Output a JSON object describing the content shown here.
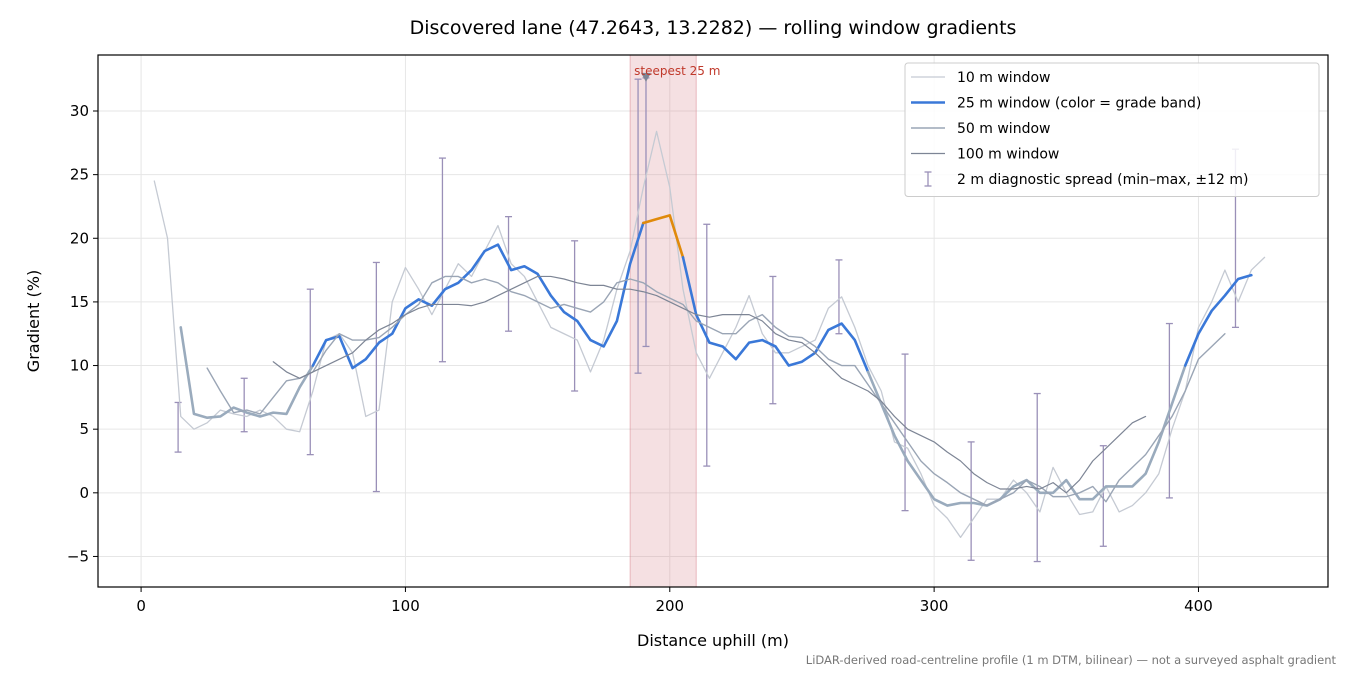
{
  "chart_data": {
    "type": "line",
    "title": "Discovered lane (47.2643, 13.2282) — rolling window gradients",
    "xlabel": "Distance uphill (m)",
    "ylabel": "Gradient (%)",
    "footnote": "LiDAR-derived road-centreline profile (1 m DTM, bilinear) — not a surveyed asphalt gradient",
    "xlim": [
      -16.3,
      449
    ],
    "ylim": [
      -7.4,
      34.4
    ],
    "xticks": [
      0,
      100,
      200,
      300,
      400
    ],
    "yticks": [
      {
        "value": -5,
        "label": "−5"
      },
      0,
      5,
      10,
      15,
      20,
      25,
      30
    ],
    "grid": true,
    "legend": "upper right",
    "x": [
      5,
      10,
      15,
      20,
      25,
      30,
      35,
      40,
      45,
      50,
      55,
      60,
      65,
      70,
      75,
      80,
      85,
      90,
      95,
      100,
      105,
      110,
      115,
      120,
      125,
      130,
      135,
      140,
      145,
      150,
      155,
      160,
      165,
      170,
      175,
      180,
      185,
      190,
      195,
      200,
      205,
      210,
      215,
      220,
      225,
      230,
      235,
      240,
      245,
      250,
      255,
      260,
      265,
      270,
      275,
      280,
      285,
      290,
      295,
      300,
      305,
      310,
      315,
      320,
      325,
      330,
      335,
      340,
      345,
      350,
      355,
      360,
      365,
      370,
      375,
      380,
      385,
      390,
      395,
      400,
      405,
      410,
      415,
      420,
      425
    ],
    "series": [
      {
        "name": "10 m window",
        "color": "#c5cad3",
        "width": 1.3,
        "values": [
          24.5,
          20,
          6,
          5,
          5.5,
          6.5,
          6.2,
          6,
          6.5,
          6,
          5,
          4.8,
          8,
          12,
          12.5,
          11,
          6,
          6.5,
          15,
          17.7,
          16,
          14,
          16,
          18,
          17,
          19,
          21,
          18,
          17,
          15,
          13,
          12.5,
          12,
          9.5,
          12,
          16,
          19,
          24,
          28.4,
          24,
          16,
          11,
          9,
          11,
          13,
          15.5,
          12.5,
          11,
          11,
          11.5,
          12,
          14.5,
          15.4,
          13,
          10,
          8,
          4,
          3.5,
          1.5,
          -1,
          -2,
          -3.5,
          -2,
          -0.5,
          -0.5,
          1,
          0,
          -1.5,
          2,
          0,
          -1.7,
          -1.5,
          0.5,
          -1.5,
          -1,
          0,
          1.5,
          5,
          8,
          13,
          15,
          17.5,
          15,
          17.5,
          18.5
        ]
      },
      {
        "name": "25 m window (color = grade band)",
        "color": "#3a78d8",
        "width": 2.6,
        "grade_bands": {
          "thresholds": [
            10,
            20
          ],
          "colors": [
            "#9aabbd",
            "#3a78d8",
            "#e08a0b"
          ]
        },
        "values": [
          null,
          null,
          13,
          6.2,
          5.9,
          6,
          6.7,
          6.3,
          6,
          6.3,
          6.2,
          8.3,
          10,
          12,
          12.3,
          9.8,
          10.5,
          11.8,
          12.5,
          14.5,
          15.2,
          14.7,
          16,
          16.5,
          17.5,
          19,
          19.5,
          17.5,
          17.8,
          17.2,
          15.5,
          14.2,
          13.5,
          12,
          11.5,
          13.5,
          18,
          21.2,
          21.5,
          21.8,
          18.5,
          14,
          11.8,
          11.5,
          10.5,
          11.8,
          12,
          11.5,
          10,
          10.3,
          11,
          12.8,
          13.3,
          12,
          9.5,
          7,
          4.5,
          2.5,
          1,
          -0.5,
          -1,
          -0.8,
          -0.8,
          -1,
          -0.5,
          0.5,
          1,
          0,
          0,
          1,
          -0.5,
          -0.5,
          0.5,
          0.5,
          0.5,
          1.5,
          4,
          7,
          10,
          12.5,
          14.3,
          15.5,
          16.8,
          17.1,
          null
        ]
      },
      {
        "name": "50 m window",
        "color": "#9aa5b5",
        "width": 1.4,
        "values": [
          null,
          null,
          null,
          null,
          9.8,
          8,
          6.3,
          6.5,
          6.2,
          7.5,
          8.8,
          9,
          9.5,
          11.2,
          12.5,
          12,
          12,
          12.2,
          13,
          14,
          14.8,
          16.5,
          17,
          17,
          16.5,
          16.8,
          16.5,
          15.8,
          15.5,
          15,
          14.5,
          14.8,
          14.5,
          14.2,
          15,
          16.5,
          16.8,
          16.5,
          15.8,
          15.3,
          14.8,
          13.5,
          13,
          12.5,
          12.5,
          13.5,
          14,
          13,
          12.3,
          12.2,
          11.5,
          10.5,
          10,
          10,
          8.5,
          7,
          5.5,
          4,
          2.5,
          1.5,
          0.8,
          0,
          -0.5,
          -1,
          -0.5,
          0,
          1,
          0.5,
          -0.3,
          -0.3,
          0,
          0.5,
          -0.7,
          1,
          2,
          3,
          4.5,
          6,
          8,
          10.5,
          11.5,
          12.5,
          null,
          null,
          null
        ]
      },
      {
        "name": "100 m window",
        "color": "#7d8595",
        "width": 1.2,
        "values": [
          null,
          null,
          null,
          null,
          null,
          null,
          null,
          null,
          null,
          10.3,
          9.5,
          9,
          9.5,
          10,
          10.5,
          11,
          12,
          12.8,
          13.3,
          14,
          14.5,
          14.8,
          14.8,
          14.8,
          14.7,
          15,
          15.5,
          16,
          16.5,
          17,
          17,
          16.8,
          16.5,
          16.3,
          16.3,
          16,
          16,
          15.8,
          15.5,
          15,
          14.5,
          14,
          13.8,
          14,
          14,
          14,
          13.5,
          12.5,
          12,
          11.8,
          11,
          10,
          9,
          8.5,
          8,
          7.2,
          6,
          5,
          4.5,
          4,
          3.2,
          2.5,
          1.5,
          0.8,
          0.3,
          0.3,
          0.5,
          0.3,
          0.8,
          0,
          1,
          2.5,
          3.5,
          4.5,
          5.5,
          6,
          null,
          null,
          null,
          null,
          null,
          null,
          null,
          null,
          null
        ]
      }
    ],
    "diagnostic": {
      "name": "2 m diagnostic spread (min–max, ±12 m)",
      "color": "#9a90b8",
      "x": [
        14,
        39,
        64,
        89,
        114,
        139,
        164,
        188,
        191,
        214,
        239,
        264,
        289,
        314,
        339,
        364,
        389,
        414
      ],
      "min": [
        3.2,
        4.8,
        3,
        0.1,
        10.3,
        12.7,
        8,
        9.4,
        11.5,
        2.1,
        7,
        12.5,
        -1.4,
        -5.3,
        -5.4,
        -4.2,
        -0.4,
        13
      ],
      "max": [
        7.1,
        9,
        16,
        18.1,
        26.3,
        21.7,
        19.8,
        32.5,
        32.6,
        21.1,
        17,
        18.3,
        10.9,
        4,
        7.8,
        3.7,
        13.3,
        27
      ]
    },
    "highlight": {
      "label": "steepest 25 m",
      "xrange": [
        185,
        210
      ],
      "marker_x": 191,
      "marker_y": 32.6,
      "color": "#d9828c",
      "label_color": "#c0392b"
    }
  }
}
